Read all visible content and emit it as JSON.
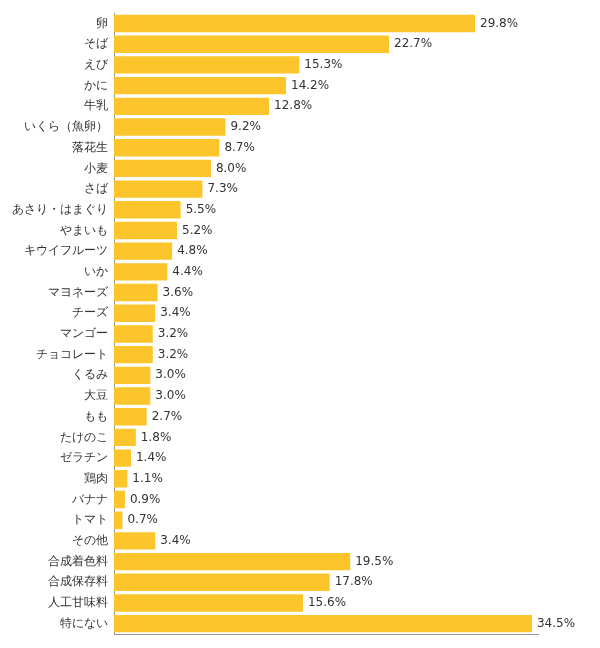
{
  "chart_data": {
    "type": "bar",
    "orientation": "horizontal",
    "categories": [
      "卵",
      "そば",
      "えび",
      "かに",
      "牛乳",
      "いくら（魚卵）",
      "落花生",
      "小麦",
      "さば",
      "あさり・はまぐり",
      "やまいも",
      "キウイフルーツ",
      "いか",
      "マヨネーズ",
      "チーズ",
      "マンゴー",
      "チョコレート",
      "くるみ",
      "大豆",
      "もも",
      "たけのこ",
      "ゼラチン",
      "鶏肉",
      "バナナ",
      "トマト",
      "その他",
      "合成着色料",
      "合成保存料",
      "人工甘味料",
      "特にない"
    ],
    "values": [
      29.8,
      22.7,
      15.3,
      14.2,
      12.8,
      9.2,
      8.7,
      8.0,
      7.3,
      5.5,
      5.2,
      4.8,
      4.4,
      3.6,
      3.4,
      3.2,
      3.2,
      3.0,
      3.0,
      2.7,
      1.8,
      1.4,
      1.1,
      0.9,
      0.7,
      3.4,
      19.5,
      17.8,
      15.6,
      34.5
    ],
    "value_labels": [
      "29.8%",
      "22.7%",
      "15.3%",
      "14.2%",
      "12.8%",
      "9.2%",
      "8.7%",
      "8.0%",
      "7.3%",
      "5.5%",
      "5.2%",
      "4.8%",
      "4.4%",
      "3.6%",
      "3.4%",
      "3.2%",
      "3.2%",
      "3.0%",
      "3.0%",
      "2.7%",
      "1.8%",
      "1.4%",
      "1.1%",
      "0.9%",
      "0.7%",
      "3.4%",
      "19.5%",
      "17.8%",
      "15.6%",
      "34.5%"
    ],
    "color": "#fcc52b",
    "xlim": [
      0,
      35
    ],
    "grid": false,
    "data_labels": true,
    "tick_labels": "y"
  }
}
